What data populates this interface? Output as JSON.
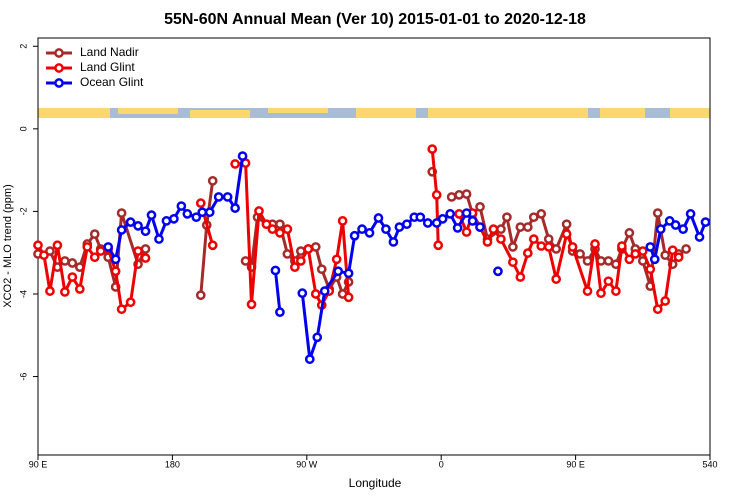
{
  "chart_data": {
    "type": "line",
    "title": "55N-60N Annual Mean (Ver 10)   2015-01-01 to 2020-12-18",
    "x_label": "Longitude",
    "y_label": "XCO2 - MLO trend (ppm)",
    "xlim": [
      90,
      540
    ],
    "xticks": [
      {
        "value": 90,
        "label": "90 E"
      },
      180,
      {
        "value": 270,
        "label": "90 W"
      },
      {
        "value": 360,
        "label": "0"
      },
      {
        "value": 450,
        "label": "90 E"
      },
      540
    ],
    "ylim": [
      -7.9,
      2.2
    ],
    "yticks": [
      2,
      0,
      -2,
      -4,
      -6
    ],
    "legend": "top-left",
    "series": [
      {
        "name": "Land Nadir",
        "color": "#a52a2a",
        "x": [
          90,
          98,
          103,
          108,
          113,
          118,
          123,
          128,
          132,
          137,
          142,
          146,
          157,
          162,
          null,
          199,
          203,
          207,
          null,
          229,
          233,
          237,
          243,
          247,
          252,
          257,
          262,
          266,
          271,
          276,
          280,
          285,
          290,
          294,
          298,
          null,
          354,
          null,
          367,
          372,
          377,
          381,
          386,
          391,
          400,
          404,
          408,
          413,
          418,
          422,
          427,
          432,
          437,
          444,
          448,
          453,
          458,
          463,
          467,
          472,
          477,
          481,
          486,
          490,
          495,
          500,
          505,
          510,
          515,
          519,
          524
        ],
        "values": [
          -3.03,
          -2.96,
          -3.35,
          -3.2,
          -3.25,
          -3.35,
          -2.79,
          -2.55,
          -2.91,
          -3.11,
          -3.83,
          -2.04,
          -3.28,
          -2.91,
          null,
          -4.03,
          -2.33,
          -1.26,
          null,
          -3.2,
          -3.35,
          -2.14,
          -2.31,
          -2.31,
          -2.31,
          -3.03,
          -3.2,
          -2.96,
          -2.91,
          -2.86,
          -3.4,
          -3.88,
          -3.59,
          -4.0,
          -3.71,
          null,
          -1.04,
          null,
          -1.65,
          -1.6,
          -1.58,
          -2.06,
          -1.89,
          -2.67,
          -2.43,
          -2.14,
          -2.86,
          -2.38,
          -2.38,
          -2.14,
          -2.06,
          -2.67,
          -2.91,
          -2.31,
          -2.96,
          -3.03,
          -3.2,
          -2.91,
          -3.2,
          -3.2,
          -3.28,
          -2.91,
          -2.52,
          -2.91,
          -3.2,
          -3.81,
          -2.04,
          -3.06,
          -3.28,
          -3.03,
          -2.91
        ]
      },
      {
        "name": "Land Glint",
        "color": "#ee0000",
        "x": [
          90,
          94,
          98,
          103,
          108,
          113,
          118,
          123,
          128,
          132,
          137,
          142,
          146,
          152,
          157,
          162,
          null,
          199,
          207,
          null,
          222,
          229,
          233,
          238,
          243,
          247,
          252,
          257,
          262,
          266,
          271,
          276,
          280,
          285,
          290,
          294,
          298,
          null,
          354,
          357,
          358,
          null,
          372,
          377,
          381,
          386,
          391,
          395,
          400,
          408,
          413,
          418,
          422,
          427,
          432,
          437,
          444,
          448,
          458,
          463,
          467,
          472,
          477,
          481,
          486,
          490,
          495,
          500,
          505,
          510,
          515,
          519
        ],
        "values": [
          -2.82,
          -3.06,
          -3.93,
          -2.82,
          -3.95,
          -3.59,
          -3.88,
          -2.86,
          -3.11,
          -2.96,
          -2.91,
          -3.45,
          -4.37,
          -4.2,
          -2.96,
          -3.13,
          null,
          -1.8,
          -2.82,
          null,
          -0.85,
          -0.83,
          -4.25,
          -1.99,
          -2.31,
          -2.43,
          -2.52,
          -2.43,
          -3.35,
          -3.2,
          -2.91,
          -4.0,
          -4.27,
          -3.93,
          -3.16,
          -2.23,
          -4.08,
          null,
          -0.49,
          -1.6,
          -2.82,
          null,
          -2.06,
          -2.5,
          -2.04,
          -2.38,
          -2.74,
          -2.43,
          -2.67,
          -3.23,
          -3.59,
          -3.01,
          -2.67,
          -2.84,
          -2.86,
          -3.64,
          -2.55,
          -2.86,
          -3.93,
          -2.79,
          -3.98,
          -3.69,
          -3.93,
          -2.84,
          -3.16,
          -3.03,
          -2.96,
          -3.4,
          -4.37,
          -4.17,
          -2.94,
          -3.11
        ]
      },
      {
        "name": "Ocean Glint",
        "color": "#0000ee",
        "x": [
          137,
          142,
          146,
          152,
          157,
          162,
          166,
          171,
          176,
          181,
          186,
          190,
          196,
          200,
          205,
          211,
          217,
          222,
          227,
          null,
          249,
          252,
          null,
          267,
          272,
          277,
          282,
          291,
          298,
          302,
          307,
          312,
          318,
          323,
          328,
          332,
          337,
          342,
          346,
          351,
          357,
          361,
          366,
          371,
          377,
          381,
          386,
          null,
          398,
          null,
          500,
          503,
          507,
          513,
          517,
          522,
          527,
          533,
          537
        ],
        "values": [
          -2.86,
          -3.16,
          -2.45,
          -2.26,
          -2.35,
          -2.48,
          -2.09,
          -2.67,
          -2.23,
          -2.18,
          -1.87,
          -2.06,
          -2.14,
          -2.02,
          -2.02,
          -1.65,
          -1.65,
          -1.92,
          -0.66,
          null,
          -3.43,
          -4.44,
          null,
          -3.98,
          -5.58,
          -5.05,
          -3.93,
          -3.45,
          -3.5,
          -2.59,
          -2.43,
          -2.52,
          -2.16,
          -2.43,
          -2.74,
          -2.38,
          -2.31,
          -2.14,
          -2.14,
          -2.28,
          -2.28,
          -2.18,
          -2.06,
          -2.4,
          -2.04,
          -2.23,
          -2.38,
          null,
          -3.45,
          null,
          -2.86,
          -3.16,
          -2.43,
          -2.23,
          -2.33,
          -2.43,
          -2.06,
          -2.62,
          -2.26
        ]
      }
    ]
  }
}
